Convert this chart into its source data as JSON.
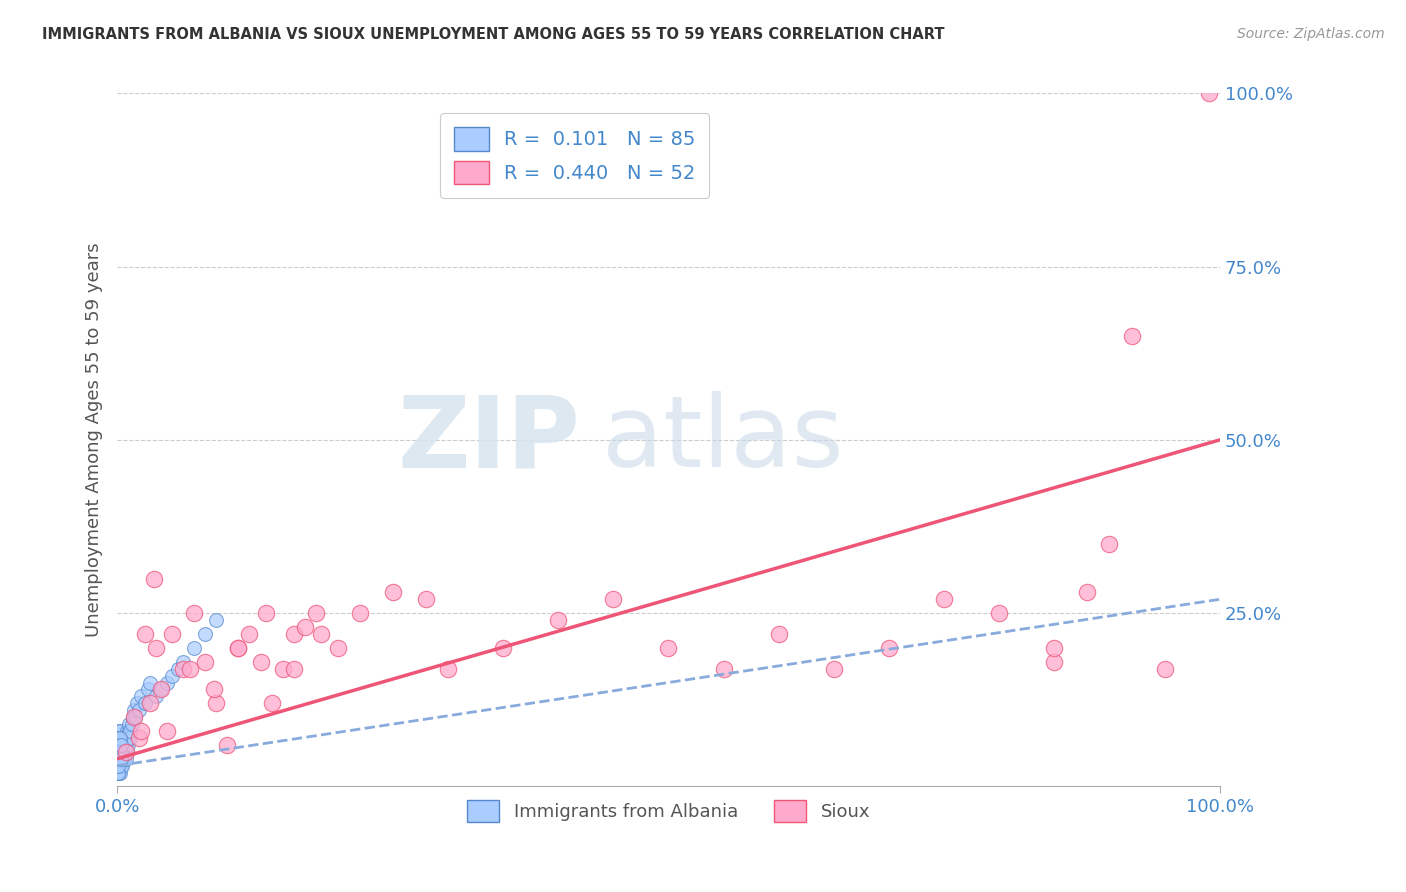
{
  "title": "IMMIGRANTS FROM ALBANIA VS SIOUX UNEMPLOYMENT AMONG AGES 55 TO 59 YEARS CORRELATION CHART",
  "source": "Source: ZipAtlas.com",
  "ylabel": "Unemployment Among Ages 55 to 59 years",
  "xlim": [
    0,
    100
  ],
  "ylim": [
    0,
    100
  ],
  "x_tick_labels": [
    "0.0%",
    "100.0%"
  ],
  "y_tick_labels_right": [
    "25.0%",
    "50.0%",
    "75.0%",
    "100.0%"
  ],
  "y_tick_vals_right": [
    25,
    50,
    75,
    100
  ],
  "albania_color": "#aaccff",
  "albania_edge": "#5588cc",
  "sioux_color": "#ffaacc",
  "sioux_edge": "#ee5577",
  "albania_line_color": "#88aadd",
  "sioux_line_color": "#ee5577",
  "legend_R_albania": "0.101",
  "legend_N_albania": "85",
  "legend_R_sioux": "0.440",
  "legend_N_sioux": "52",
  "watermark_zip": "ZIP",
  "watermark_atlas": "atlas",
  "albania_x": [
    0.05,
    0.08,
    0.1,
    0.1,
    0.12,
    0.12,
    0.15,
    0.15,
    0.18,
    0.18,
    0.2,
    0.2,
    0.22,
    0.22,
    0.25,
    0.25,
    0.28,
    0.28,
    0.3,
    0.3,
    0.35,
    0.35,
    0.38,
    0.4,
    0.42,
    0.45,
    0.48,
    0.5,
    0.55,
    0.55,
    0.6,
    0.62,
    0.65,
    0.68,
    0.7,
    0.72,
    0.75,
    0.78,
    0.8,
    0.85,
    0.88,
    0.9,
    0.95,
    1.0,
    1.05,
    1.1,
    1.15,
    1.2,
    1.3,
    1.4,
    1.5,
    1.6,
    1.8,
    2.0,
    2.2,
    2.5,
    2.8,
    3.0,
    3.5,
    4.0,
    4.5,
    5.0,
    5.5,
    6.0,
    7.0,
    8.0,
    9.0,
    0.06,
    0.07,
    0.09,
    0.11,
    0.13,
    0.14,
    0.16,
    0.17,
    0.19,
    0.21,
    0.23,
    0.24,
    0.26,
    0.27,
    0.29,
    0.32,
    0.33,
    0.36
  ],
  "albania_y": [
    3,
    2,
    4,
    6,
    3,
    8,
    5,
    2,
    4,
    6,
    3,
    7,
    5,
    4,
    2,
    8,
    6,
    3,
    5,
    4,
    3,
    7,
    4,
    6,
    3,
    5,
    4,
    6,
    4,
    7,
    5,
    6,
    4,
    5,
    7,
    6,
    5,
    4,
    6,
    7,
    5,
    8,
    6,
    7,
    8,
    9,
    7,
    8,
    9,
    10,
    11,
    10,
    12,
    11,
    13,
    12,
    14,
    15,
    13,
    14,
    15,
    16,
    17,
    18,
    20,
    22,
    24,
    2,
    3,
    5,
    4,
    6,
    7,
    5,
    4,
    6,
    5,
    6,
    4,
    5,
    7,
    4,
    5,
    6,
    4
  ],
  "sioux_x": [
    0.8,
    1.5,
    2.0,
    2.5,
    3.0,
    3.5,
    4.0,
    4.5,
    5.0,
    6.0,
    7.0,
    8.0,
    9.0,
    10.0,
    11.0,
    12.0,
    13.0,
    14.0,
    15.0,
    16.0,
    17.0,
    18.0,
    20.0,
    22.0,
    25.0,
    28.0,
    30.0,
    35.0,
    40.0,
    45.0,
    50.0,
    55.0,
    60.0,
    65.0,
    70.0,
    75.0,
    80.0,
    85.0,
    88.0,
    90.0,
    95.0,
    99.0,
    2.2,
    3.3,
    6.6,
    8.8,
    11.0,
    13.5,
    16.0,
    18.5,
    85.0,
    92.0
  ],
  "sioux_y": [
    5,
    10,
    7,
    22,
    12,
    20,
    14,
    8,
    22,
    17,
    25,
    18,
    12,
    6,
    20,
    22,
    18,
    12,
    17,
    22,
    23,
    25,
    20,
    25,
    28,
    27,
    17,
    20,
    24,
    27,
    20,
    17,
    22,
    17,
    20,
    27,
    25,
    18,
    28,
    35,
    17,
    100,
    8,
    30,
    17,
    14,
    20,
    25,
    17,
    22,
    20,
    65
  ],
  "sioux_line_x0": 0,
  "sioux_line_y0": 4,
  "sioux_line_x1": 100,
  "sioux_line_y1": 50,
  "albania_line_x0": 0,
  "albania_line_y0": 3,
  "albania_line_x1": 100,
  "albania_line_y1": 27
}
